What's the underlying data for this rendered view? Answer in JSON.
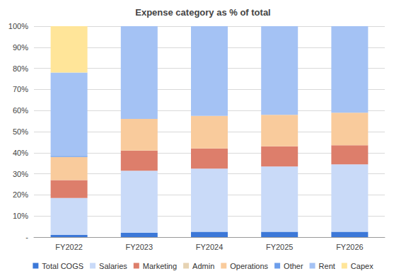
{
  "chart_data": {
    "type": "bar",
    "title": "Expense category as % of total",
    "stacked": true,
    "grid": true,
    "legend": "bottom",
    "categories": [
      "FY2022",
      "FY2023",
      "FY2024",
      "FY2025",
      "FY2026"
    ],
    "ylim": [
      0,
      100
    ],
    "yticks": [
      {
        "value": 0,
        "label": "-"
      },
      {
        "value": 10,
        "label": "10%"
      },
      {
        "value": 20,
        "label": "20%"
      },
      {
        "value": 30,
        "label": "30%"
      },
      {
        "value": 40,
        "label": "40%"
      },
      {
        "value": 50,
        "label": "50%"
      },
      {
        "value": 60,
        "label": "60%"
      },
      {
        "value": 70,
        "label": "70%"
      },
      {
        "value": 80,
        "label": "80%"
      },
      {
        "value": 90,
        "label": "90%"
      },
      {
        "value": 100,
        "label": "100%"
      }
    ],
    "series": [
      {
        "name": "Total COGS",
        "color": "#3c78d8",
        "values": [
          1,
          2,
          2.5,
          2.5,
          2.5
        ]
      },
      {
        "name": "Salaries",
        "color": "#c9daf8",
        "values": [
          17.5,
          29.5,
          30,
          31,
          32
        ]
      },
      {
        "name": "Marketing",
        "color": "#dd7e6b",
        "values": [
          8.5,
          9.5,
          9.5,
          9.5,
          9
        ]
      },
      {
        "name": "Admin",
        "color": "#e6d3b3",
        "values": [
          0,
          0,
          0,
          0,
          0
        ]
      },
      {
        "name": "Operations",
        "color": "#f9cb9c",
        "values": [
          11,
          15,
          15.5,
          15,
          15.5
        ]
      },
      {
        "name": "Other",
        "color": "#6d9eeb",
        "values": [
          0.5,
          0,
          0,
          0,
          0
        ]
      },
      {
        "name": "Rent",
        "color": "#a4c2f4",
        "values": [
          39.5,
          44,
          42.5,
          42,
          41
        ]
      },
      {
        "name": "Capex",
        "color": "#ffe599",
        "values": [
          22,
          0,
          0,
          0,
          0
        ]
      }
    ]
  }
}
